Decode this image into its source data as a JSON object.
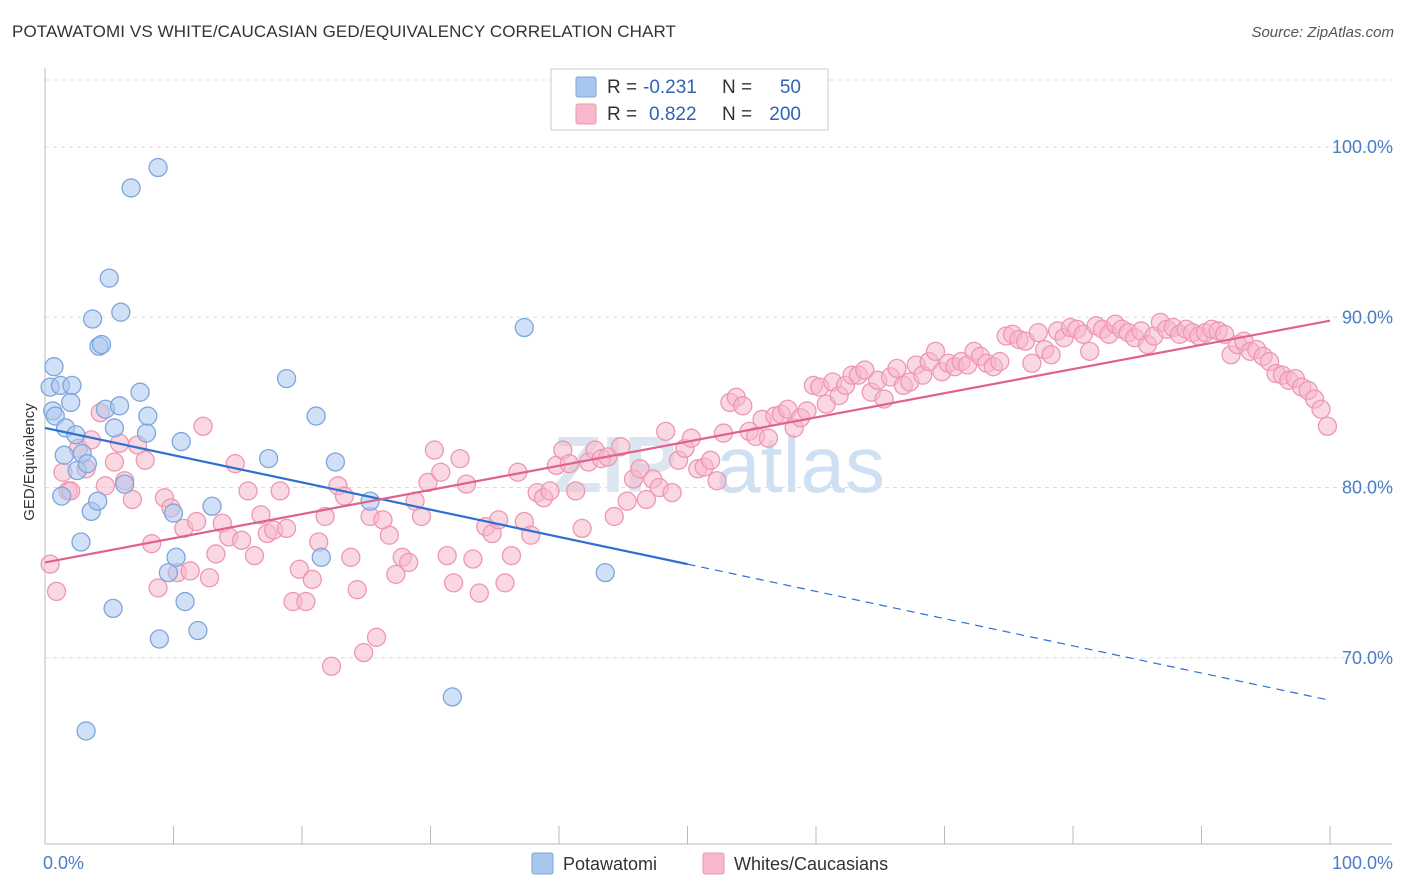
{
  "title": "POTAWATOMI VS WHITE/CAUCASIAN GED/EQUIVALENCY CORRELATION CHART",
  "source": "Source: ZipAtlas.com",
  "watermark": {
    "zip": "ZIP",
    "atlas": "atlas"
  },
  "colors": {
    "blue_fill": "#a9c6ee",
    "blue_stroke": "#7ea6dc",
    "blue_line": "#2f6fd0",
    "pink_fill": "#f6b8cb",
    "pink_stroke": "#ee97b3",
    "pink_line": "#e0628c",
    "grid": "#dddddd",
    "tick_text": "#4a7cc7"
  },
  "legend": {
    "rows": [
      {
        "r_label": "R =",
        "r_value": "-0.231",
        "n_label": "N =",
        "n_value": "50"
      },
      {
        "r_label": "R =",
        "r_value": "0.822",
        "n_label": "N =",
        "n_value": "200"
      }
    ]
  },
  "chart_data": {
    "type": "scatter",
    "title": "POTAWATOMI VS WHITE/CAUCASIAN GED/EQUIVALENCY CORRELATION CHART",
    "xlabel": "",
    "ylabel": "GED/Equivalency",
    "xlim": [
      0,
      100
    ],
    "ylim": [
      59,
      104
    ],
    "x_tick_labels": [
      "0.0%",
      "100.0%"
    ],
    "y_ticks": [
      70,
      80,
      90,
      100
    ],
    "y_tick_labels": [
      "70.0%",
      "80.0%",
      "90.0%",
      "100.0%"
    ],
    "grid": true,
    "legend_position": "bottom",
    "series": [
      {
        "name": "Potawatomi",
        "color": "#a9c6ee",
        "trend": {
          "x": [
            0,
            50,
            100
          ],
          "y": [
            83.5,
            75.5,
            67.5
          ],
          "solid_until": 50
        },
        "points": [
          [
            0.4,
            85.9
          ],
          [
            0.6,
            84.5
          ],
          [
            0.7,
            87.1
          ],
          [
            0.8,
            84.2
          ],
          [
            1.2,
            86
          ],
          [
            1.3,
            79.5
          ],
          [
            1.5,
            81.9
          ],
          [
            1.6,
            83.5
          ],
          [
            2.0,
            85
          ],
          [
            2.1,
            86
          ],
          [
            2.4,
            83.1
          ],
          [
            2.5,
            81.0
          ],
          [
            2.8,
            76.8
          ],
          [
            2.9,
            82.0
          ],
          [
            3.2,
            65.7
          ],
          [
            3.3,
            81.4
          ],
          [
            3.6,
            78.6
          ],
          [
            3.7,
            89.9
          ],
          [
            4.1,
            79.2
          ],
          [
            4.2,
            88.3
          ],
          [
            4.4,
            88.4
          ],
          [
            4.7,
            84.6
          ],
          [
            5.0,
            92.3
          ],
          [
            5.3,
            72.9
          ],
          [
            5.4,
            83.5
          ],
          [
            5.8,
            84.8
          ],
          [
            5.9,
            90.3
          ],
          [
            6.2,
            80.2
          ],
          [
            6.7,
            97.6
          ],
          [
            7.4,
            85.6
          ],
          [
            7.9,
            83.2
          ],
          [
            8.0,
            84.2
          ],
          [
            8.8,
            98.8
          ],
          [
            8.9,
            71.1
          ],
          [
            9.6,
            75.0
          ],
          [
            10.0,
            78.5
          ],
          [
            10.2,
            75.9
          ],
          [
            10.6,
            82.7
          ],
          [
            10.9,
            73.3
          ],
          [
            11.9,
            71.6
          ],
          [
            13.0,
            78.9
          ],
          [
            17.4,
            81.7
          ],
          [
            18.8,
            86.4
          ],
          [
            21.1,
            84.2
          ],
          [
            21.5,
            75.9
          ],
          [
            22.6,
            81.5
          ],
          [
            25.3,
            79.2
          ],
          [
            31.7,
            67.7
          ],
          [
            37.3,
            89.4
          ],
          [
            43.6,
            75.0
          ]
        ]
      },
      {
        "name": "Whites/Caucasians",
        "color": "#f6b8cb",
        "trend": {
          "x": [
            0,
            100
          ],
          "y": [
            75.6,
            89.8
          ]
        },
        "points": [
          [
            0.4,
            75.5
          ],
          [
            0.9,
            73.9
          ],
          [
            1.4,
            80.9
          ],
          [
            1.8,
            79.8
          ],
          [
            2.0,
            79.8
          ],
          [
            2.6,
            82.3
          ],
          [
            3.2,
            81.1
          ],
          [
            3.6,
            82.8
          ],
          [
            4.3,
            84.4
          ],
          [
            4.7,
            80.1
          ],
          [
            5.4,
            81.5
          ],
          [
            5.8,
            82.6
          ],
          [
            6.2,
            80.4
          ],
          [
            6.8,
            79.3
          ],
          [
            7.2,
            82.5
          ],
          [
            7.8,
            81.6
          ],
          [
            8.3,
            76.7
          ],
          [
            8.8,
            74.1
          ],
          [
            9.3,
            79.4
          ],
          [
            9.8,
            78.8
          ],
          [
            10.3,
            75.0
          ],
          [
            10.8,
            77.6
          ],
          [
            11.3,
            75.1
          ],
          [
            11.8,
            78.0
          ],
          [
            12.3,
            83.6
          ],
          [
            12.8,
            74.7
          ],
          [
            13.3,
            76.1
          ],
          [
            13.8,
            77.9
          ],
          [
            14.3,
            77.1
          ],
          [
            14.8,
            81.4
          ],
          [
            15.3,
            76.9
          ],
          [
            15.8,
            79.8
          ],
          [
            16.3,
            76.0
          ],
          [
            16.8,
            78.4
          ],
          [
            17.3,
            77.3
          ],
          [
            17.8,
            77.5
          ],
          [
            18.3,
            79.8
          ],
          [
            18.8,
            77.6
          ],
          [
            19.3,
            73.3
          ],
          [
            19.8,
            75.2
          ],
          [
            20.3,
            73.3
          ],
          [
            20.8,
            74.6
          ],
          [
            21.3,
            76.8
          ],
          [
            21.8,
            78.3
          ],
          [
            22.3,
            69.5
          ],
          [
            22.8,
            80.1
          ],
          [
            23.3,
            79.5
          ],
          [
            23.8,
            75.9
          ],
          [
            24.3,
            74.0
          ],
          [
            24.8,
            70.3
          ],
          [
            25.3,
            78.3
          ],
          [
            25.8,
            71.2
          ],
          [
            26.3,
            78.1
          ],
          [
            26.8,
            77.2
          ],
          [
            27.3,
            74.9
          ],
          [
            27.8,
            75.9
          ],
          [
            28.3,
            75.6
          ],
          [
            28.8,
            79.2
          ],
          [
            29.3,
            78.3
          ],
          [
            29.8,
            80.3
          ],
          [
            30.3,
            82.2
          ],
          [
            30.8,
            80.9
          ],
          [
            31.3,
            76.0
          ],
          [
            31.8,
            74.4
          ],
          [
            32.3,
            81.7
          ],
          [
            32.8,
            80.2
          ],
          [
            33.3,
            75.8
          ],
          [
            33.8,
            73.8
          ],
          [
            34.3,
            77.7
          ],
          [
            34.8,
            77.3
          ],
          [
            35.3,
            78.1
          ],
          [
            35.8,
            74.4
          ],
          [
            36.3,
            76.0
          ],
          [
            36.8,
            80.9
          ],
          [
            37.3,
            78.0
          ],
          [
            37.8,
            77.2
          ],
          [
            38.3,
            79.7
          ],
          [
            38.8,
            79.4
          ],
          [
            39.3,
            79.8
          ],
          [
            39.8,
            81.3
          ],
          [
            40.3,
            82.2
          ],
          [
            40.8,
            81.4
          ],
          [
            41.3,
            79.8
          ],
          [
            41.8,
            77.6
          ],
          [
            42.3,
            81.5
          ],
          [
            42.8,
            82.2
          ],
          [
            43.3,
            81.7
          ],
          [
            43.8,
            81.8
          ],
          [
            44.3,
            78.3
          ],
          [
            44.8,
            82.4
          ],
          [
            45.3,
            79.2
          ],
          [
            45.8,
            80.5
          ],
          [
            46.3,
            81.1
          ],
          [
            46.8,
            79.3
          ],
          [
            47.3,
            80.5
          ],
          [
            47.8,
            80.0
          ],
          [
            48.3,
            83.3
          ],
          [
            48.8,
            79.7
          ],
          [
            49.3,
            81.6
          ],
          [
            49.8,
            82.3
          ],
          [
            50.3,
            82.9
          ],
          [
            50.8,
            81.1
          ],
          [
            51.3,
            81.2
          ],
          [
            51.8,
            81.6
          ],
          [
            52.3,
            80.4
          ],
          [
            52.8,
            83.2
          ],
          [
            53.3,
            85.0
          ],
          [
            53.8,
            85.3
          ],
          [
            54.3,
            84.8
          ],
          [
            54.8,
            83.3
          ],
          [
            55.3,
            83.0
          ],
          [
            55.8,
            84.0
          ],
          [
            56.3,
            82.9
          ],
          [
            56.8,
            84.2
          ],
          [
            57.3,
            84.3
          ],
          [
            57.8,
            84.6
          ],
          [
            58.3,
            83.5
          ],
          [
            58.8,
            84.1
          ],
          [
            59.3,
            84.5
          ],
          [
            59.8,
            86.0
          ],
          [
            60.3,
            85.9
          ],
          [
            60.8,
            84.9
          ],
          [
            61.3,
            86.2
          ],
          [
            61.8,
            85.4
          ],
          [
            62.3,
            86.0
          ],
          [
            62.8,
            86.6
          ],
          [
            63.3,
            86.6
          ],
          [
            63.8,
            86.9
          ],
          [
            64.3,
            85.6
          ],
          [
            64.8,
            86.3
          ],
          [
            65.3,
            85.2
          ],
          [
            65.8,
            86.5
          ],
          [
            66.3,
            87.0
          ],
          [
            66.8,
            86.0
          ],
          [
            67.3,
            86.2
          ],
          [
            67.8,
            87.2
          ],
          [
            68.3,
            86.6
          ],
          [
            68.8,
            87.4
          ],
          [
            69.3,
            88.0
          ],
          [
            69.8,
            86.8
          ],
          [
            70.3,
            87.3
          ],
          [
            70.8,
            87.1
          ],
          [
            71.3,
            87.4
          ],
          [
            71.8,
            87.2
          ],
          [
            72.3,
            88.0
          ],
          [
            72.8,
            87.7
          ],
          [
            73.3,
            87.3
          ],
          [
            73.8,
            87.1
          ],
          [
            74.3,
            87.4
          ],
          [
            74.8,
            88.9
          ],
          [
            75.3,
            89.0
          ],
          [
            75.8,
            88.7
          ],
          [
            76.3,
            88.6
          ],
          [
            76.8,
            87.3
          ],
          [
            77.3,
            89.1
          ],
          [
            77.8,
            88.1
          ],
          [
            78.3,
            87.8
          ],
          [
            78.8,
            89.2
          ],
          [
            79.3,
            88.8
          ],
          [
            79.8,
            89.4
          ],
          [
            80.3,
            89.3
          ],
          [
            80.8,
            89.0
          ],
          [
            81.3,
            88.0
          ],
          [
            81.8,
            89.5
          ],
          [
            82.3,
            89.3
          ],
          [
            82.8,
            89.0
          ],
          [
            83.3,
            89.6
          ],
          [
            83.8,
            89.3
          ],
          [
            84.3,
            89.1
          ],
          [
            84.8,
            88.8
          ],
          [
            85.3,
            89.2
          ],
          [
            85.8,
            88.4
          ],
          [
            86.3,
            88.9
          ],
          [
            86.8,
            89.7
          ],
          [
            87.3,
            89.3
          ],
          [
            87.8,
            89.4
          ],
          [
            88.3,
            89.0
          ],
          [
            88.8,
            89.3
          ],
          [
            89.3,
            89.1
          ],
          [
            89.8,
            88.9
          ],
          [
            90.3,
            89.1
          ],
          [
            90.8,
            89.3
          ],
          [
            91.3,
            89.2
          ],
          [
            91.8,
            89.0
          ],
          [
            92.3,
            87.8
          ],
          [
            92.8,
            88.4
          ],
          [
            93.3,
            88.6
          ],
          [
            93.8,
            88.0
          ],
          [
            94.3,
            88.1
          ],
          [
            94.8,
            87.7
          ],
          [
            95.3,
            87.4
          ],
          [
            95.8,
            86.7
          ],
          [
            96.3,
            86.6
          ],
          [
            96.8,
            86.3
          ],
          [
            97.3,
            86.4
          ],
          [
            97.8,
            85.9
          ],
          [
            98.3,
            85.7
          ],
          [
            98.8,
            85.2
          ],
          [
            99.3,
            84.6
          ],
          [
            99.8,
            83.6
          ]
        ]
      }
    ]
  }
}
